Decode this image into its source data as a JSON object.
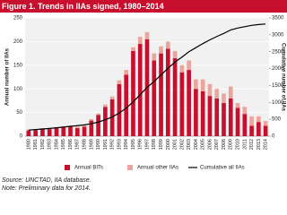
{
  "chart_data": {
    "type": "bar",
    "stacked": true,
    "title": "Figure 1. Trends in IIAs signed, 1980–2014",
    "y_label": "Annual number of IIAs",
    "y2_label": "Cumulative number of IIAs",
    "categories": [
      "1980",
      "1981",
      "1982",
      "1983",
      "1984",
      "1985",
      "1986",
      "1987",
      "1988",
      "1989",
      "1990",
      "1991",
      "1992",
      "1993",
      "1994",
      "1995",
      "1996",
      "1997",
      "1998",
      "1999",
      "2000",
      "2001",
      "2002",
      "2003",
      "2004",
      "2005",
      "2006",
      "2007",
      "2008",
      "2009",
      "2010",
      "2011",
      "2012",
      "2013",
      "2014"
    ],
    "series": [
      {
        "name": "Annual BITs",
        "type": "bar",
        "color": "#c8102e",
        "values": [
          12,
          13,
          15,
          15,
          17,
          18,
          20,
          17,
          20,
          33,
          45,
          62,
          78,
          110,
          130,
          180,
          195,
          205,
          160,
          175,
          185,
          165,
          135,
          140,
          100,
          95,
          85,
          80,
          70,
          80,
          60,
          47,
          22,
          30,
          22
        ]
      },
      {
        "name": "Annual other IIAs",
        "type": "bar",
        "color": "#eba59c",
        "values": [
          2,
          1,
          2,
          2,
          2,
          3,
          2,
          3,
          3,
          3,
          3,
          5,
          6,
          8,
          10,
          8,
          15,
          15,
          15,
          15,
          15,
          15,
          15,
          20,
          20,
          25,
          25,
          20,
          20,
          25,
          10,
          15,
          20,
          12,
          10
        ]
      },
      {
        "name": "Cumulative all IIAs",
        "type": "line",
        "axis": "y2",
        "color": "#000000",
        "values": [
          180,
          195,
          212,
          229,
          248,
          269,
          291,
          311,
          334,
          370,
          418,
          485,
          569,
          687,
          827,
          1015,
          1225,
          1445,
          1620,
          1810,
          2010,
          2190,
          2340,
          2500,
          2620,
          2740,
          2850,
          2950,
          3040,
          3145,
          3200,
          3240,
          3280,
          3305,
          3320
        ]
      }
    ],
    "ylim": [
      0,
      250
    ],
    "yticks": [
      0,
      50,
      100,
      150,
      200,
      250
    ],
    "y2lim": [
      0,
      3500
    ],
    "y2ticks": [
      0,
      500,
      1000,
      1500,
      2000,
      2500,
      3000,
      3500
    ],
    "grid": true,
    "legend": "bottom",
    "notes": [
      "Source: UNCTAD, IIA database.",
      "Note: Preliminary data for 2014."
    ]
  }
}
